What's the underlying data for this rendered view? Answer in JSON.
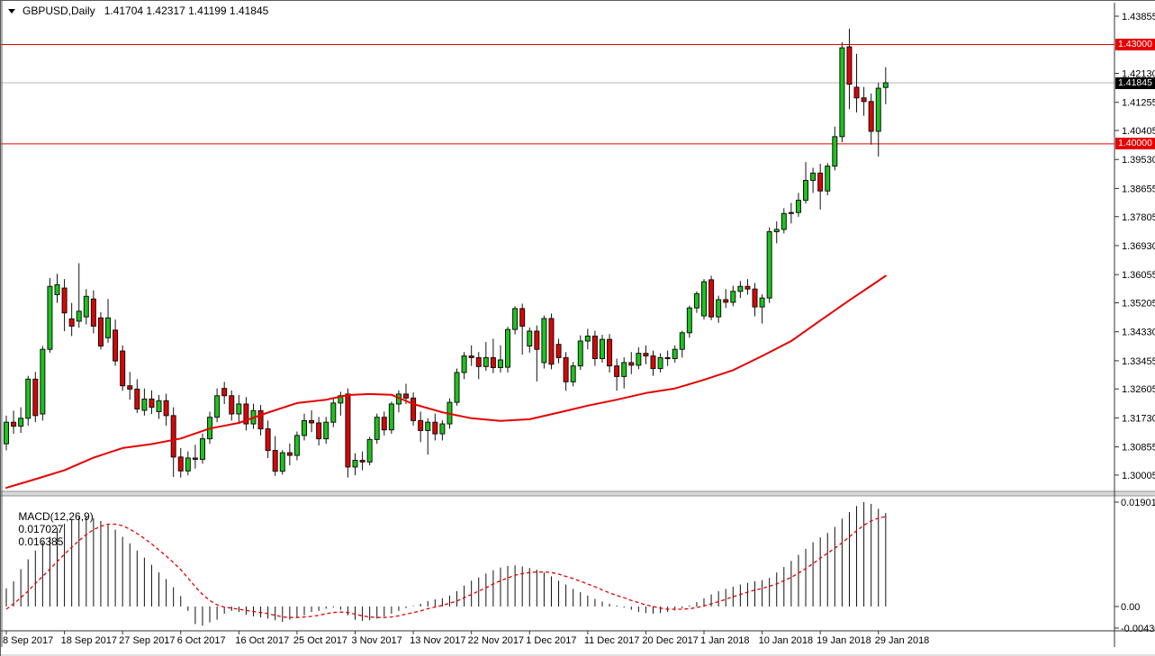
{
  "header": {
    "symbol_period": "GBPUSD,Daily",
    "ohlc_text": "1.41704 1.42317 1.41199 1.41845"
  },
  "chart_data": {
    "type": "candlestick",
    "title": "GBPUSD Daily candlestick chart with red moving average, horizontal levels at 1.43000 and 1.40000, and MACD(12,26,9) sub-panel",
    "price_axis_ticks": [
      "1.43855",
      "1.42130",
      "1.41255",
      "1.40405",
      "1.39530",
      "1.38655",
      "1.37805",
      "1.36930",
      "1.36055",
      "1.35205",
      "1.34330",
      "1.33455",
      "1.32605",
      "1.31730",
      "1.30855",
      "1.30005"
    ],
    "price_badges": [
      {
        "text": "1.43000",
        "price": 1.43,
        "bg": "#e60000",
        "fg": "#ffffff"
      },
      {
        "text": "1.41845",
        "price": 1.41845,
        "bg": "#000000",
        "fg": "#ffffff"
      },
      {
        "text": "1.40000",
        "price": 1.4,
        "bg": "#e60000",
        "fg": "#ffffff"
      }
    ],
    "hlines": [
      {
        "price": 1.43,
        "color": "#e60000",
        "name": "resistance-line-143"
      },
      {
        "price": 1.41845,
        "color": "#b6b6b6",
        "name": "bid-price-line"
      },
      {
        "price": 1.4,
        "color": "#e60000",
        "name": "support-line-140"
      }
    ],
    "time_axis_labels": [
      "8 Sep 2017",
      "18 Sep 2017",
      "27 Sep 2017",
      "6 Oct 2017",
      "16 Oct 2017",
      "25 Oct 2017",
      "3 Nov 2017",
      "13 Nov 2017",
      "22 Nov 2017",
      "1 Dec 2017",
      "11 Dec 2017",
      "20 Dec 2017",
      "1 Jan 2018",
      "10 Jan 2018",
      "19 Jan 2018",
      "29 Jan 2018"
    ],
    "label_every_n_candles": 8,
    "candles": [
      [
        1.3095,
        1.318,
        1.3075,
        1.316
      ],
      [
        1.316,
        1.3195,
        1.3125,
        1.3148
      ],
      [
        1.3148,
        1.3205,
        1.3128,
        1.3172
      ],
      [
        1.3172,
        1.33,
        1.315,
        1.329
      ],
      [
        1.329,
        1.3312,
        1.316,
        1.318
      ],
      [
        1.3185,
        1.339,
        1.3165,
        1.338
      ],
      [
        1.338,
        1.3595,
        1.337,
        1.357
      ],
      [
        1.3545,
        1.3608,
        1.352,
        1.3575
      ],
      [
        1.3565,
        1.3592,
        1.3435,
        1.349
      ],
      [
        1.3472,
        1.352,
        1.342,
        1.345
      ],
      [
        1.3465,
        1.364,
        1.3445,
        1.3495
      ],
      [
        1.3478,
        1.3562,
        1.3455,
        1.354
      ],
      [
        1.3532,
        1.3558,
        1.3428,
        1.345
      ],
      [
        1.3475,
        1.3492,
        1.338,
        1.339
      ],
      [
        1.3415,
        1.3532,
        1.34,
        1.3475
      ],
      [
        1.3438,
        1.347,
        1.333,
        1.3345
      ],
      [
        1.3375,
        1.3392,
        1.3255,
        1.327
      ],
      [
        1.327,
        1.3312,
        1.3228,
        1.326
      ],
      [
        1.326,
        1.329,
        1.3188,
        1.32
      ],
      [
        1.3196,
        1.3262,
        1.318,
        1.323
      ],
      [
        1.323,
        1.3256,
        1.3185,
        1.3205
      ],
      [
        1.3192,
        1.3242,
        1.317,
        1.3225
      ],
      [
        1.3225,
        1.3246,
        1.315,
        1.318
      ],
      [
        1.318,
        1.3205,
        1.2995,
        1.3055
      ],
      [
        1.3055,
        1.3082,
        1.2993,
        1.3013
      ],
      [
        1.3013,
        1.3072,
        1.3,
        1.3052
      ],
      [
        1.3052,
        1.3092,
        1.302,
        1.3048
      ],
      [
        1.3048,
        1.3126,
        1.3035,
        1.311
      ],
      [
        1.311,
        1.3192,
        1.3095,
        1.3175
      ],
      [
        1.3175,
        1.3262,
        1.316,
        1.324
      ],
      [
        1.3262,
        1.3282,
        1.3215,
        1.324
      ],
      [
        1.324,
        1.3256,
        1.3165,
        1.3185
      ],
      [
        1.3185,
        1.3242,
        1.3155,
        1.3215
      ],
      [
        1.3215,
        1.3236,
        1.3135,
        1.3155
      ],
      [
        1.3155,
        1.3216,
        1.314,
        1.3195
      ],
      [
        1.3195,
        1.3212,
        1.312,
        1.314
      ],
      [
        1.314,
        1.3165,
        1.3052,
        1.3075
      ],
      [
        1.3075,
        1.3118,
        1.2998,
        1.3012
      ],
      [
        1.3012,
        1.3076,
        1.3002,
        1.3068
      ],
      [
        1.3068,
        1.3096,
        1.303,
        1.306
      ],
      [
        1.306,
        1.3132,
        1.3045,
        1.312
      ],
      [
        1.312,
        1.3186,
        1.3105,
        1.3165
      ],
      [
        1.3165,
        1.3196,
        1.313,
        1.3158
      ],
      [
        1.3158,
        1.3176,
        1.309,
        1.311
      ],
      [
        1.311,
        1.3176,
        1.3095,
        1.316
      ],
      [
        1.316,
        1.3232,
        1.3145,
        1.3218
      ],
      [
        1.3218,
        1.3252,
        1.318,
        1.324
      ],
      [
        1.3245,
        1.3262,
        1.2993,
        1.3025
      ],
      [
        1.3025,
        1.3066,
        1.3,
        1.3045
      ],
      [
        1.3045,
        1.3072,
        1.3015,
        1.304
      ],
      [
        1.304,
        1.3116,
        1.303,
        1.3108
      ],
      [
        1.3108,
        1.3186,
        1.3095,
        1.3175
      ],
      [
        1.3175,
        1.3192,
        1.312,
        1.3137
      ],
      [
        1.3137,
        1.3222,
        1.3125,
        1.3215
      ],
      [
        1.3215,
        1.3256,
        1.319,
        1.3245
      ],
      [
        1.3245,
        1.3276,
        1.3215,
        1.3233
      ],
      [
        1.3233,
        1.325,
        1.315,
        1.3165
      ],
      [
        1.3165,
        1.3192,
        1.31,
        1.3135
      ],
      [
        1.3135,
        1.3172,
        1.3062,
        1.316
      ],
      [
        1.316,
        1.3186,
        1.3105,
        1.3125
      ],
      [
        1.3125,
        1.3166,
        1.3105,
        1.3155
      ],
      [
        1.3155,
        1.3232,
        1.314,
        1.322
      ],
      [
        1.322,
        1.3322,
        1.321,
        1.331
      ],
      [
        1.331,
        1.3372,
        1.329,
        1.336
      ],
      [
        1.336,
        1.3392,
        1.333,
        1.3355
      ],
      [
        1.3355,
        1.3372,
        1.329,
        1.3328
      ],
      [
        1.3328,
        1.3402,
        1.3315,
        1.3355
      ],
      [
        1.3355,
        1.3412,
        1.3308,
        1.3325
      ],
      [
        1.3325,
        1.3392,
        1.331,
        1.3348
      ],
      [
        1.3326,
        1.3448,
        1.331,
        1.344
      ],
      [
        1.344,
        1.351,
        1.3425,
        1.3503
      ],
      [
        1.3503,
        1.3518,
        1.3364,
        1.345
      ],
      [
        1.339,
        1.3446,
        1.337,
        1.3435
      ],
      [
        1.3435,
        1.3452,
        1.3283,
        1.338
      ],
      [
        1.334,
        1.3482,
        1.3322,
        1.3473
      ],
      [
        1.3473,
        1.3488,
        1.332,
        1.3335
      ],
      [
        1.3395,
        1.3412,
        1.3338,
        1.3355
      ],
      [
        1.3355,
        1.3372,
        1.3255,
        1.3282
      ],
      [
        1.3282,
        1.3342,
        1.3268,
        1.333
      ],
      [
        1.333,
        1.3422,
        1.3318,
        1.3405
      ],
      [
        1.3405,
        1.3442,
        1.338,
        1.342
      ],
      [
        1.342,
        1.3436,
        1.333,
        1.3352
      ],
      [
        1.3352,
        1.3424,
        1.334,
        1.341
      ],
      [
        1.341,
        1.3426,
        1.331,
        1.333
      ],
      [
        1.333,
        1.3352,
        1.3255,
        1.3298
      ],
      [
        1.3298,
        1.3356,
        1.3262,
        1.334
      ],
      [
        1.334,
        1.3372,
        1.3305,
        1.3332
      ],
      [
        1.3332,
        1.3386,
        1.332,
        1.3368
      ],
      [
        1.3368,
        1.3392,
        1.3335,
        1.336
      ],
      [
        1.336,
        1.3376,
        1.33,
        1.3322
      ],
      [
        1.3322,
        1.3368,
        1.331,
        1.3355
      ],
      [
        1.3355,
        1.3376,
        1.333,
        1.3352
      ],
      [
        1.3352,
        1.3392,
        1.334,
        1.338
      ],
      [
        1.338,
        1.3436,
        1.3355,
        1.343
      ],
      [
        1.343,
        1.3512,
        1.3415,
        1.3505
      ],
      [
        1.3505,
        1.3555,
        1.349,
        1.3548
      ],
      [
        1.3481,
        1.3592,
        1.347,
        1.3584
      ],
      [
        1.359,
        1.3602,
        1.3468,
        1.3478
      ],
      [
        1.3478,
        1.3542,
        1.346,
        1.353
      ],
      [
        1.353,
        1.3562,
        1.3505,
        1.3522
      ],
      [
        1.3522,
        1.3572,
        1.351,
        1.3555
      ],
      [
        1.3555,
        1.3586,
        1.3535,
        1.357
      ],
      [
        1.357,
        1.3592,
        1.3545,
        1.3562
      ],
      [
        1.3562,
        1.358,
        1.348,
        1.3508
      ],
      [
        1.3508,
        1.3546,
        1.3458,
        1.3535
      ],
      [
        1.3535,
        1.3748,
        1.352,
        1.3735
      ],
      [
        1.3735,
        1.3766,
        1.37,
        1.3742
      ],
      [
        1.3742,
        1.3806,
        1.373,
        1.379
      ],
      [
        1.379,
        1.3822,
        1.376,
        1.3793
      ],
      [
        1.3793,
        1.3852,
        1.378,
        1.383
      ],
      [
        1.383,
        1.3945,
        1.382,
        1.389
      ],
      [
        1.389,
        1.3928,
        1.3852,
        1.3912
      ],
      [
        1.3912,
        1.394,
        1.3802,
        1.3858
      ],
      [
        1.3858,
        1.3942,
        1.3845,
        1.3933
      ],
      [
        1.3933,
        1.4052,
        1.392,
        1.4022
      ],
      [
        1.4022,
        1.4307,
        1.4005,
        1.429
      ],
      [
        1.4293,
        1.4348,
        1.4105,
        1.418
      ],
      [
        1.4171,
        1.4272,
        1.4095,
        1.4139
      ],
      [
        1.4139,
        1.4172,
        1.4085,
        1.4128
      ],
      [
        1.4128,
        1.4152,
        1.3998,
        1.4038
      ],
      [
        1.4038,
        1.4185,
        1.3962,
        1.4168
      ],
      [
        1.41704,
        1.42317,
        1.41199,
        1.41845
      ]
    ],
    "ma_points": [
      [
        0,
        1.2962
      ],
      [
        4,
        1.2988
      ],
      [
        8,
        1.3015
      ],
      [
        12,
        1.3053
      ],
      [
        16,
        1.3082
      ],
      [
        20,
        1.3094
      ],
      [
        24,
        1.3111
      ],
      [
        28,
        1.3141
      ],
      [
        32,
        1.3158
      ],
      [
        36,
        1.3189
      ],
      [
        40,
        1.3218
      ],
      [
        44,
        1.3228
      ],
      [
        47,
        1.3242
      ],
      [
        50,
        1.3245
      ],
      [
        53,
        1.3243
      ],
      [
        56,
        1.3215
      ],
      [
        60,
        1.319
      ],
      [
        64,
        1.3172
      ],
      [
        68,
        1.3164
      ],
      [
        72,
        1.3169
      ],
      [
        76,
        1.3189
      ],
      [
        80,
        1.321
      ],
      [
        84,
        1.3228
      ],
      [
        88,
        1.3248
      ],
      [
        92,
        1.3262
      ],
      [
        96,
        1.3288
      ],
      [
        100,
        1.3317
      ],
      [
        104,
        1.336
      ],
      [
        108,
        1.3405
      ],
      [
        112,
        1.3467
      ],
      [
        116,
        1.3528
      ],
      [
        119,
        1.3572
      ],
      [
        121,
        1.3602
      ]
    ],
    "macd": {
      "label": "MACD(12,26,9)",
      "macd_value": "0.017027",
      "signal_value": "0.016385",
      "axis_labels": {
        "max": "0.019019",
        "zero": "0.00",
        "min": "-0.004307"
      },
      "histogram": [
        0.0033,
        0.0046,
        0.0068,
        0.0086,
        0.0102,
        0.0117,
        0.0127,
        0.0143,
        0.0151,
        0.0159,
        0.0163,
        0.0164,
        0.0161,
        0.0156,
        0.0149,
        0.014,
        0.0127,
        0.0115,
        0.0102,
        0.0089,
        0.0076,
        0.0062,
        0.005,
        0.0035,
        0.0019,
        -0.0008,
        -0.0032,
        -0.0035,
        -0.0029,
        -0.0024,
        -0.0013,
        -0.0008,
        -0.001,
        -0.0015,
        -0.0018,
        -0.002,
        -0.0022,
        -0.0025,
        -0.0028,
        -0.0024,
        -0.002,
        -0.0016,
        -0.001,
        -0.0008,
        -0.0004,
        -0.0002,
        -0.0006,
        -0.0016,
        -0.0024,
        -0.0026,
        -0.0025,
        -0.0022,
        -0.0018,
        -0.0013,
        -0.0008,
        -0.0003,
        0.0001,
        0.0005,
        0.001,
        0.0013,
        0.0015,
        0.002,
        0.0028,
        0.0038,
        0.0047,
        0.0053,
        0.006,
        0.0066,
        0.0071,
        0.0074,
        0.0075,
        0.0073,
        0.007,
        0.0067,
        0.0062,
        0.0055,
        0.0047,
        0.004,
        0.0032,
        0.0026,
        0.002,
        0.0014,
        0.0009,
        0.0005,
        0.0002,
        -0.0002,
        -0.0006,
        -0.001,
        -0.0012,
        -0.0013,
        -0.0012,
        -0.001,
        -0.0007,
        -0.0003,
        0.0002,
        0.0008,
        0.0015,
        0.0022,
        0.0028,
        0.0032,
        0.0036,
        0.004,
        0.0043,
        0.0046,
        0.0048,
        0.0052,
        0.0062,
        0.0072,
        0.0083,
        0.0094,
        0.0105,
        0.0117,
        0.0126,
        0.0134,
        0.0145,
        0.016,
        0.0172,
        0.0183,
        0.019019,
        0.0187,
        0.0178,
        0.017027
      ],
      "signal": [
        -0.0005,
        0.0005,
        0.0016,
        0.0028,
        0.0042,
        0.0055,
        0.0068,
        0.0082,
        0.0095,
        0.0108,
        0.012,
        0.0131,
        0.014,
        0.0146,
        0.015,
        0.015,
        0.0147,
        0.0141,
        0.0133,
        0.0124,
        0.0114,
        0.0103,
        0.0092,
        0.008,
        0.0067,
        0.0052,
        0.0036,
        0.0022,
        0.0011,
        0.0003,
        -0.0001,
        -0.0003,
        -0.0005,
        -0.0007,
        -0.0009,
        -0.0011,
        -0.0013,
        -0.0016,
        -0.0019,
        -0.002,
        -0.002,
        -0.0019,
        -0.0018,
        -0.0016,
        -0.0013,
        -0.0011,
        -0.001,
        -0.0011,
        -0.0014,
        -0.0017,
        -0.0019,
        -0.002,
        -0.002,
        -0.0019,
        -0.0017,
        -0.0014,
        -0.0011,
        -0.0008,
        -0.0004,
        -0.0001,
        0.0002,
        0.0006,
        0.001,
        0.0016,
        0.0022,
        0.0028,
        0.0034,
        0.0041,
        0.0047,
        0.0052,
        0.0057,
        0.006,
        0.0062,
        0.0063,
        0.0063,
        0.0062,
        0.0059,
        0.0055,
        0.0051,
        0.0046,
        0.0041,
        0.0036,
        0.003,
        0.0025,
        0.002,
        0.0016,
        0.0011,
        0.0007,
        0.0003,
        0.0,
        -0.0003,
        -0.0005,
        -0.0005,
        -0.0005,
        -0.0004,
        -0.0002,
        0.0001,
        0.0005,
        0.0009,
        0.0013,
        0.0018,
        0.0022,
        0.0026,
        0.003,
        0.0033,
        0.0037,
        0.0041,
        0.0047,
        0.0053,
        0.0061,
        0.0069,
        0.0078,
        0.0088,
        0.0097,
        0.0106,
        0.0116,
        0.0127,
        0.0138,
        0.0148,
        0.0156,
        0.0161,
        0.016385
      ]
    },
    "colors": {
      "bull": "#1cc41c",
      "bear": "#dc0404",
      "wick": "#111111",
      "ma": "#e60000",
      "macd_hist": "#111111",
      "macd_signal": "#e60000",
      "axis_text": "#000000",
      "background": "#ffffff"
    }
  }
}
